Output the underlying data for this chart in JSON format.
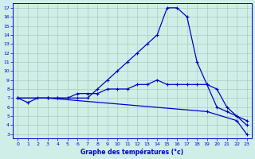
{
  "xlabel": "Graphe des températures (°c)",
  "background_color": "#d0eee8",
  "line_color": "#0000cc",
  "grid_color": "#aaccbb",
  "xlim": [
    -0.5,
    23.5
  ],
  "ylim": [
    2.5,
    17.5
  ],
  "xticks": [
    0,
    1,
    2,
    3,
    4,
    5,
    6,
    7,
    8,
    9,
    10,
    11,
    12,
    13,
    14,
    15,
    16,
    17,
    18,
    19,
    20,
    21,
    22,
    23
  ],
  "yticks": [
    3,
    4,
    5,
    6,
    7,
    8,
    9,
    10,
    11,
    12,
    13,
    14,
    15,
    16,
    17
  ],
  "line1_x": [
    0,
    1,
    2,
    3,
    4,
    5,
    6,
    7,
    8,
    9,
    10,
    11,
    12,
    13,
    14,
    15,
    16,
    17,
    18,
    19,
    20,
    21,
    22,
    23
  ],
  "line1_y": [
    7,
    6.5,
    7,
    7,
    7,
    7,
    7,
    7,
    8,
    9,
    10,
    11,
    12,
    13,
    14,
    17,
    17,
    16,
    11,
    8.5,
    8,
    6,
    5,
    4
  ],
  "line2_x": [
    0,
    3,
    4,
    5,
    6,
    7,
    8,
    9,
    10,
    11,
    12,
    13,
    14,
    15,
    16,
    17,
    18,
    19,
    20,
    21,
    22,
    23
  ],
  "line2_y": [
    7,
    7,
    7,
    7,
    7.5,
    7.5,
    7.5,
    8,
    8,
    8,
    8.5,
    8.5,
    9,
    8.5,
    8.5,
    8.5,
    8.5,
    8.5,
    6,
    5.5,
    5,
    4.5
  ],
  "line3_x": [
    0,
    3,
    19,
    22,
    23
  ],
  "line3_y": [
    7,
    7,
    5.5,
    4.5,
    3
  ]
}
